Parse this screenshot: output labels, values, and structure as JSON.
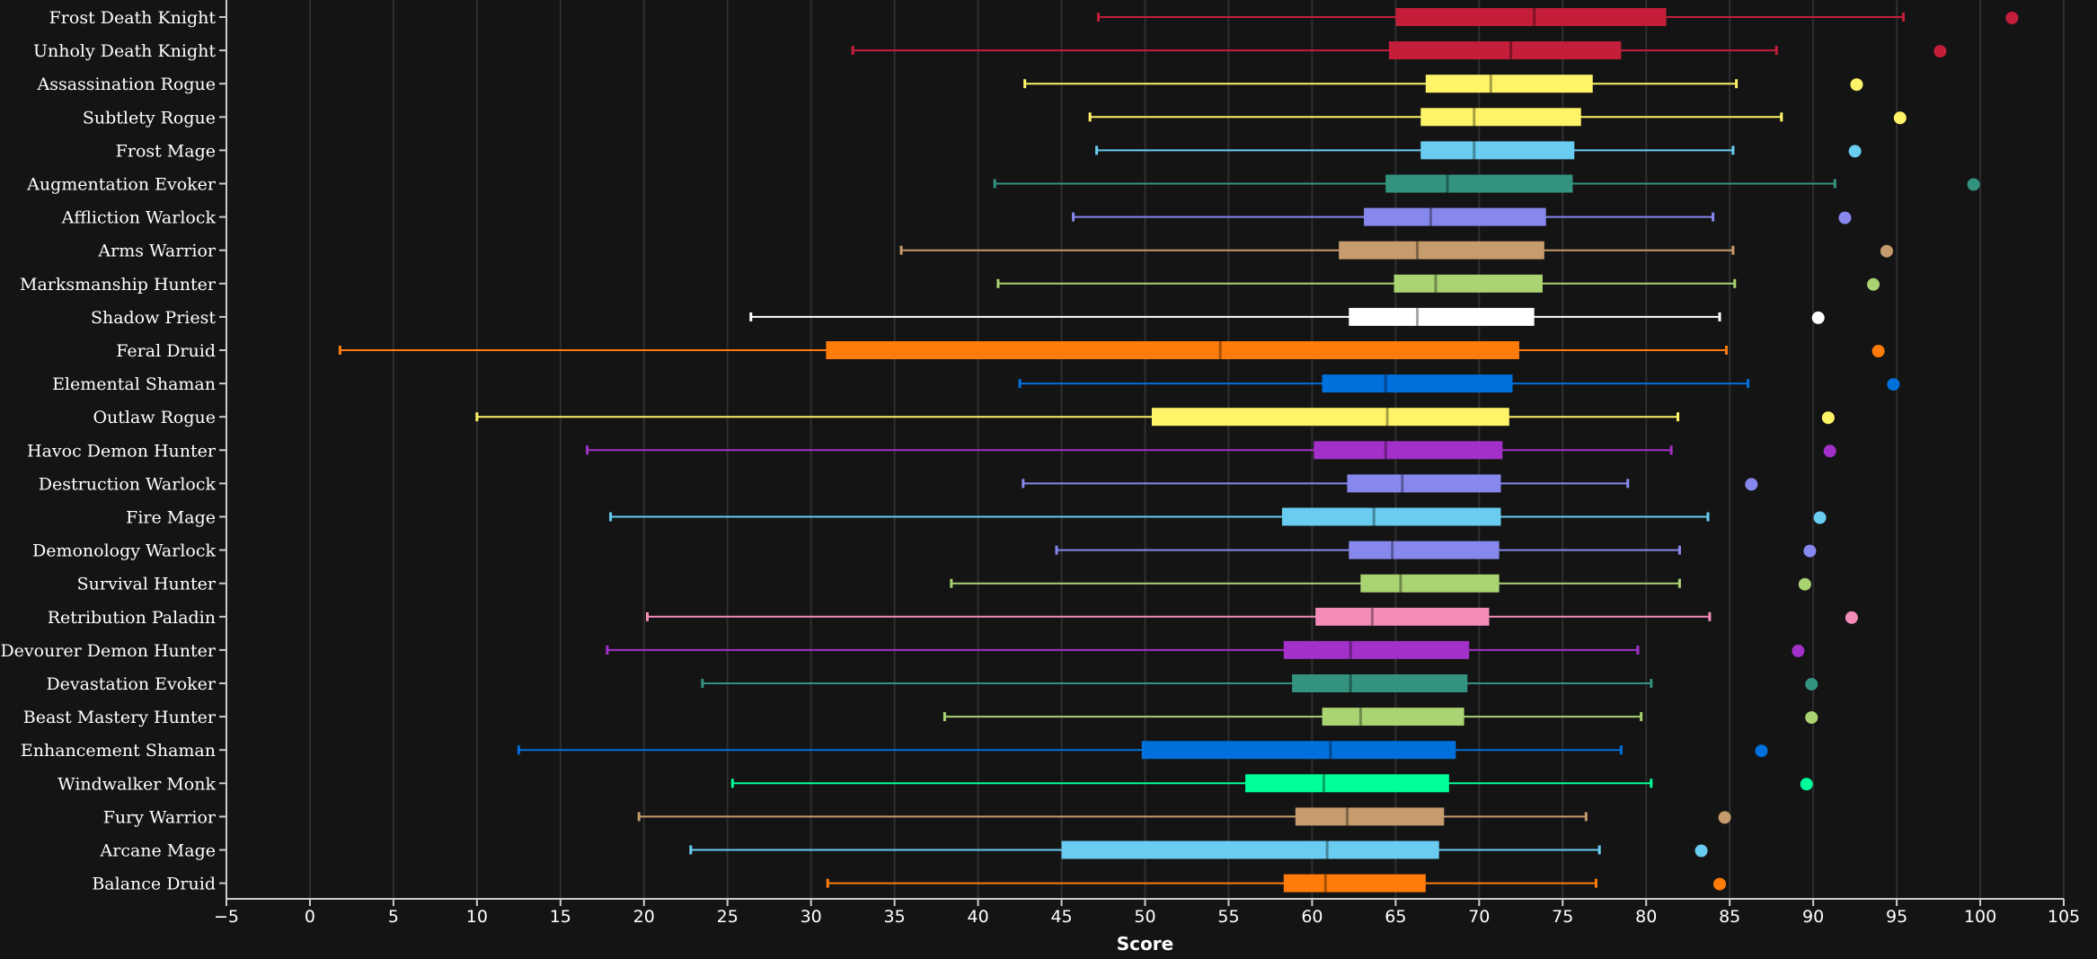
{
  "chart_data": {
    "type": "boxplot",
    "xlabel": "Score",
    "ylabel": "",
    "xlim": [
      -5,
      105
    ],
    "xticks": [
      -5,
      0,
      5,
      10,
      15,
      20,
      25,
      30,
      35,
      40,
      45,
      50,
      55,
      60,
      65,
      70,
      75,
      80,
      85,
      90,
      95,
      100,
      105
    ],
    "grid": "vertical",
    "legend": "none",
    "series": [
      {
        "name": "Frost Death Knight",
        "color": "#C41E3A",
        "min": 47.2,
        "q1": 65.0,
        "median": 73.3,
        "q3": 81.2,
        "max": 95.4,
        "outlier": 101.9
      },
      {
        "name": "Unholy Death Knight",
        "color": "#C41E3A",
        "min": 32.5,
        "q1": 64.6,
        "median": 71.9,
        "q3": 78.5,
        "max": 87.8,
        "outlier": 97.6
      },
      {
        "name": "Assassination Rogue",
        "color": "#FFF468",
        "min": 42.8,
        "q1": 66.8,
        "median": 70.7,
        "q3": 76.8,
        "max": 85.4,
        "outlier": 92.6
      },
      {
        "name": "Subtlety Rogue",
        "color": "#FFF468",
        "min": 46.7,
        "q1": 66.5,
        "median": 69.7,
        "q3": 76.1,
        "max": 88.1,
        "outlier": 95.2
      },
      {
        "name": "Frost Mage",
        "color": "#69CCF0",
        "min": 47.1,
        "q1": 66.5,
        "median": 69.7,
        "q3": 75.7,
        "max": 85.2,
        "outlier": 92.5
      },
      {
        "name": "Augmentation Evoker",
        "color": "#33937F",
        "min": 41.0,
        "q1": 64.4,
        "median": 68.1,
        "q3": 75.6,
        "max": 91.3,
        "outlier": 99.6
      },
      {
        "name": "Affliction Warlock",
        "color": "#8788EE",
        "min": 45.7,
        "q1": 63.1,
        "median": 67.1,
        "q3": 74.0,
        "max": 84.0,
        "outlier": 91.9
      },
      {
        "name": "Arms Warrior",
        "color": "#C69B6D",
        "min": 35.4,
        "q1": 61.6,
        "median": 66.3,
        "q3": 73.9,
        "max": 85.2,
        "outlier": 94.4
      },
      {
        "name": "Marksmanship Hunter",
        "color": "#AAD372",
        "min": 41.2,
        "q1": 64.9,
        "median": 67.4,
        "q3": 73.8,
        "max": 85.3,
        "outlier": 93.6
      },
      {
        "name": "Shadow Priest",
        "color": "#FFFFFF",
        "min": 26.4,
        "q1": 62.2,
        "median": 66.3,
        "q3": 73.3,
        "max": 84.4,
        "outlier": 90.3
      },
      {
        "name": "Feral Druid",
        "color": "#FF7C0A",
        "min": 1.8,
        "q1": 30.9,
        "median": 54.5,
        "q3": 72.4,
        "max": 84.8,
        "outlier": 93.9
      },
      {
        "name": "Elemental Shaman",
        "color": "#0070DD",
        "min": 42.5,
        "q1": 60.6,
        "median": 64.4,
        "q3": 72.0,
        "max": 86.1,
        "outlier": 94.8
      },
      {
        "name": "Outlaw Rogue",
        "color": "#FFF468",
        "min": 10.0,
        "q1": 50.4,
        "median": 64.5,
        "q3": 71.8,
        "max": 81.9,
        "outlier": 90.9
      },
      {
        "name": "Havoc Demon Hunter",
        "color": "#A330C9",
        "min": 16.6,
        "q1": 60.1,
        "median": 64.4,
        "q3": 71.4,
        "max": 81.5,
        "outlier": 91.0
      },
      {
        "name": "Destruction Warlock",
        "color": "#8788EE",
        "min": 42.7,
        "q1": 62.1,
        "median": 65.4,
        "q3": 71.3,
        "max": 78.9,
        "outlier": 86.3
      },
      {
        "name": "Fire Mage",
        "color": "#69CCF0",
        "min": 18.0,
        "q1": 58.2,
        "median": 63.7,
        "q3": 71.3,
        "max": 83.7,
        "outlier": 90.4
      },
      {
        "name": "Demonology Warlock",
        "color": "#8788EE",
        "min": 44.7,
        "q1": 62.2,
        "median": 64.8,
        "q3": 71.2,
        "max": 82.0,
        "outlier": 89.8
      },
      {
        "name": "Survival Hunter",
        "color": "#AAD372",
        "min": 38.4,
        "q1": 62.9,
        "median": 65.3,
        "q3": 71.2,
        "max": 82.0,
        "outlier": 89.5
      },
      {
        "name": "Retribution Paladin",
        "color": "#F48CBA",
        "min": 20.2,
        "q1": 60.2,
        "median": 63.6,
        "q3": 70.6,
        "max": 83.8,
        "outlier": 92.3
      },
      {
        "name": "Devourer Demon Hunter",
        "color": "#A330C9",
        "min": 17.8,
        "q1": 58.3,
        "median": 62.3,
        "q3": 69.4,
        "max": 79.5,
        "outlier": 89.1
      },
      {
        "name": "Devastation Evoker",
        "color": "#33937F",
        "min": 23.5,
        "q1": 58.8,
        "median": 62.3,
        "q3": 69.3,
        "max": 80.3,
        "outlier": 89.9
      },
      {
        "name": "Beast Mastery Hunter",
        "color": "#AAD372",
        "min": 38.0,
        "q1": 60.6,
        "median": 62.9,
        "q3": 69.1,
        "max": 79.7,
        "outlier": 89.9
      },
      {
        "name": "Enhancement Shaman",
        "color": "#0070DD",
        "min": 12.5,
        "q1": 49.8,
        "median": 61.1,
        "q3": 68.6,
        "max": 78.5,
        "outlier": 86.9
      },
      {
        "name": "Windwalker Monk",
        "color": "#00FF98",
        "min": 25.3,
        "q1": 56.0,
        "median": 60.7,
        "q3": 68.2,
        "max": 80.3,
        "outlier": 89.6
      },
      {
        "name": "Fury Warrior",
        "color": "#C69B6D",
        "min": 19.7,
        "q1": 59.0,
        "median": 62.1,
        "q3": 67.9,
        "max": 76.4,
        "outlier": 84.7
      },
      {
        "name": "Arcane Mage",
        "color": "#69CCF0",
        "min": 22.8,
        "q1": 45.0,
        "median": 60.9,
        "q3": 67.6,
        "max": 77.2,
        "outlier": 83.3
      },
      {
        "name": "Balance Druid",
        "color": "#FF7C0A",
        "min": 31.0,
        "q1": 58.3,
        "median": 60.8,
        "q3": 66.8,
        "max": 77.0,
        "outlier": 84.4
      }
    ]
  }
}
